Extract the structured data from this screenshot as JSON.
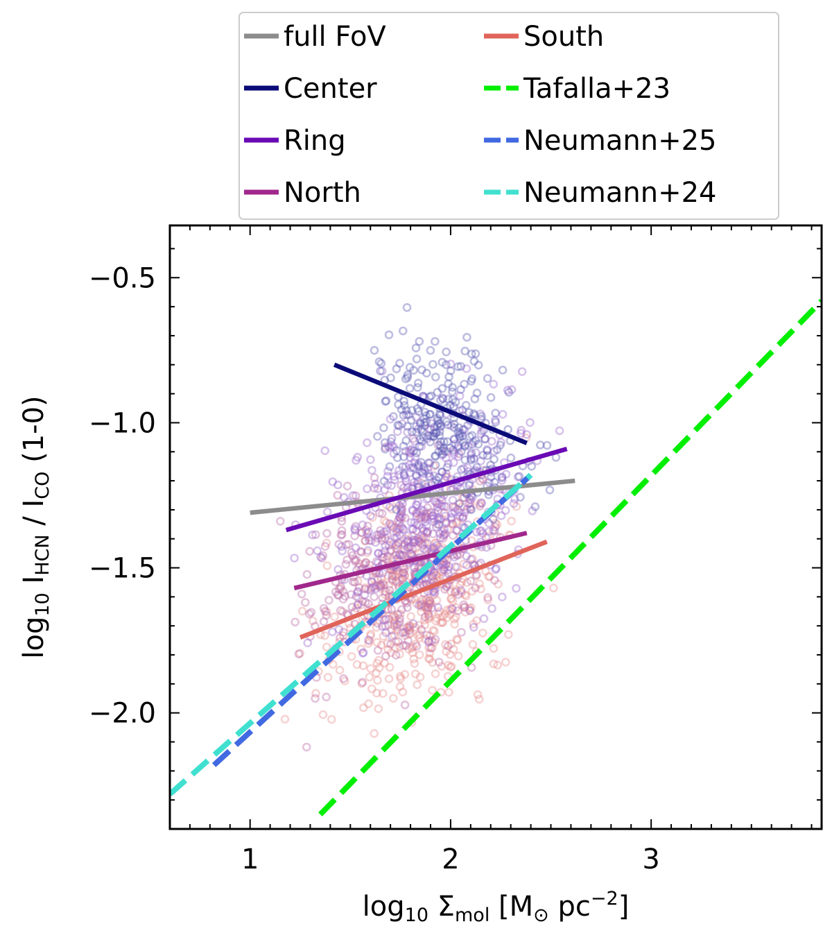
{
  "chart_data": {
    "type": "scatter",
    "xlabel": {
      "base": "log",
      "sub1": "10",
      "mid": " Σ",
      "sub2": "mol",
      "bracket": " [M",
      "sun": "⊙",
      "unit": " pc",
      "sup": "−2",
      "close": "]"
    },
    "ylabel": {
      "base": "log",
      "sub1": "10",
      "mid": " I",
      "sub2": "HCN",
      "slash": " / I",
      "sub3": "CO",
      "tail": " (1-0)"
    },
    "xlim": [
      0.6,
      3.85
    ],
    "ylim": [
      -2.4,
      -0.32
    ],
    "x_ticks": [
      1,
      2,
      3
    ],
    "y_ticks": [
      -2.0,
      -1.5,
      -1.0,
      -0.5
    ],
    "x_tick_labels": [
      "1",
      "2",
      "3"
    ],
    "y_tick_labels": [
      "−2.0",
      "−1.5",
      "−1.0",
      "−0.5"
    ],
    "scatter_colors": {
      "center": "#5a5ab4",
      "ring": "#9a6ad0",
      "north": "#b86aa8",
      "south": "#e89090"
    },
    "series": [
      {
        "name": "full FoV",
        "style": "solid",
        "color": "#8c8c8c",
        "x": [
          1.0,
          2.62
        ],
        "y": [
          -1.31,
          -1.2
        ]
      },
      {
        "name": "Center",
        "style": "solid",
        "color": "#0a0a78",
        "x": [
          1.42,
          2.38
        ],
        "y": [
          -0.8,
          -1.07
        ]
      },
      {
        "name": "Ring",
        "style": "solid",
        "color": "#6a0ab4",
        "x": [
          1.18,
          2.58
        ],
        "y": [
          -1.37,
          -1.09
        ]
      },
      {
        "name": "North",
        "style": "solid",
        "color": "#a0288c",
        "x": [
          1.22,
          2.38
        ],
        "y": [
          -1.57,
          -1.38
        ]
      },
      {
        "name": "South",
        "style": "solid",
        "color": "#e0645a",
        "x": [
          1.25,
          2.48
        ],
        "y": [
          -1.74,
          -1.41
        ]
      },
      {
        "name": "Tafalla+23",
        "style": "dashed",
        "color": "#00ee00",
        "x": [
          1.35,
          3.85
        ],
        "y": [
          -2.35,
          -0.58
        ]
      },
      {
        "name": "Neumann+25",
        "style": "dashed",
        "color": "#4169e1",
        "x": [
          0.82,
          2.4
        ],
        "y": [
          -2.18,
          -1.18
        ]
      },
      {
        "name": "Neumann+24",
        "style": "dashed",
        "color": "#40e0d0",
        "x": [
          0.6,
          2.4
        ],
        "y": [
          -2.28,
          -1.18
        ]
      }
    ]
  }
}
